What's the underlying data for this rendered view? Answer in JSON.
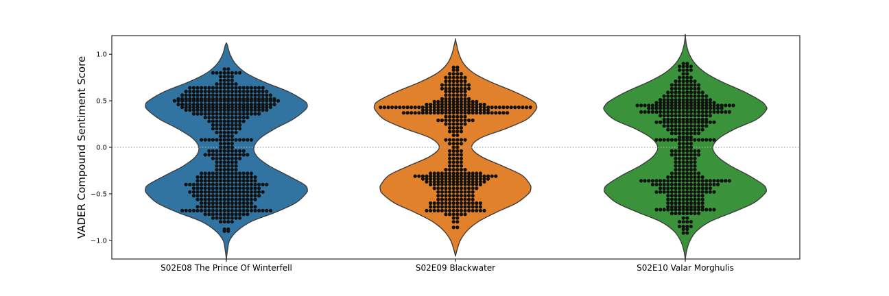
{
  "chart_data": {
    "type": "violin",
    "ylabel": "VADER Compound Sentiment Score",
    "xlabel": "",
    "ylim": [
      -1.2,
      1.2
    ],
    "yticks": [
      -1.0,
      -0.5,
      0.0,
      0.5,
      1.0
    ],
    "ytick_labels": [
      "−1.0",
      "−0.5",
      "0.0",
      "0.5",
      "1.0"
    ],
    "reference_line": {
      "y": 0.0,
      "style": "dotted",
      "color": "#aaaaaa"
    },
    "grid": false,
    "legend": "none",
    "overlay": "swarm",
    "point_color": "#111111",
    "categories": [
      "S02E08 The Prince Of Winterfell",
      "S02E09 Blackwater",
      "S02E10 Valar Morghulis"
    ],
    "colors": [
      "#3274a1",
      "#e1812c",
      "#3a923a"
    ],
    "series": [
      {
        "name": "S02E08 The Prince Of Winterfell",
        "extent": [
          -1.2,
          1.12
        ],
        "density": [
          [
            -1.2,
            0.0
          ],
          [
            -1.1,
            0.015
          ],
          [
            -1.0,
            0.04
          ],
          [
            -0.9,
            0.13
          ],
          [
            -0.8,
            0.3
          ],
          [
            -0.7,
            0.6
          ],
          [
            -0.6,
            0.85
          ],
          [
            -0.5,
            0.98
          ],
          [
            -0.45,
            1.0
          ],
          [
            -0.4,
            0.96
          ],
          [
            -0.3,
            0.75
          ],
          [
            -0.2,
            0.53
          ],
          [
            -0.1,
            0.38
          ],
          [
            0.0,
            0.34
          ],
          [
            0.1,
            0.42
          ],
          [
            0.2,
            0.6
          ],
          [
            0.3,
            0.82
          ],
          [
            0.4,
            0.97
          ],
          [
            0.45,
            1.0
          ],
          [
            0.5,
            0.96
          ],
          [
            0.6,
            0.76
          ],
          [
            0.7,
            0.47
          ],
          [
            0.8,
            0.24
          ],
          [
            0.9,
            0.11
          ],
          [
            1.0,
            0.045
          ],
          [
            1.1,
            0.012
          ],
          [
            1.12,
            0.0
          ]
        ],
        "points": [
          {
            "y": 0.84,
            "n": 2
          },
          {
            "y": 0.8,
            "n": 8
          },
          {
            "y": 0.76,
            "n": 4
          },
          {
            "y": 0.72,
            "n": 4
          },
          {
            "y": 0.68,
            "n": 6
          },
          {
            "y": 0.64,
            "n": 20
          },
          {
            "y": 0.6,
            "n": 22
          },
          {
            "y": 0.56,
            "n": 24
          },
          {
            "y": 0.52,
            "n": 26
          },
          {
            "y": 0.5,
            "n": 28
          },
          {
            "y": 0.46,
            "n": 26
          },
          {
            "y": 0.43,
            "n": 24
          },
          {
            "y": 0.4,
            "n": 22
          },
          {
            "y": 0.36,
            "n": 18
          },
          {
            "y": 0.32,
            "n": 12
          },
          {
            "y": 0.28,
            "n": 10
          },
          {
            "y": 0.24,
            "n": 8
          },
          {
            "y": 0.2,
            "n": 8
          },
          {
            "y": 0.16,
            "n": 6
          },
          {
            "y": 0.12,
            "n": 4
          },
          {
            "y": 0.08,
            "n": 14
          },
          {
            "y": 0.04,
            "n": 4
          },
          {
            "y": 0.0,
            "n": 4
          },
          {
            "y": -0.04,
            "n": 10
          },
          {
            "y": -0.08,
            "n": 12
          },
          {
            "y": -0.12,
            "n": 8
          },
          {
            "y": -0.16,
            "n": 6
          },
          {
            "y": -0.2,
            "n": 6
          },
          {
            "y": -0.24,
            "n": 6
          },
          {
            "y": -0.28,
            "n": 14
          },
          {
            "y": -0.32,
            "n": 16
          },
          {
            "y": -0.36,
            "n": 16
          },
          {
            "y": -0.4,
            "n": 22
          },
          {
            "y": -0.44,
            "n": 18
          },
          {
            "y": -0.48,
            "n": 20
          },
          {
            "y": -0.52,
            "n": 18
          },
          {
            "y": -0.56,
            "n": 16
          },
          {
            "y": -0.6,
            "n": 14
          },
          {
            "y": -0.64,
            "n": 16
          },
          {
            "y": -0.68,
            "n": 24
          },
          {
            "y": -0.72,
            "n": 12
          },
          {
            "y": -0.76,
            "n": 8
          },
          {
            "y": -0.8,
            "n": 4
          },
          {
            "y": -0.88,
            "n": 2
          },
          {
            "y": -0.9,
            "n": 2
          }
        ]
      },
      {
        "name": "S02E09 Blackwater",
        "extent": [
          -1.17,
          1.16
        ],
        "density": [
          [
            -1.17,
            0.0
          ],
          [
            -1.1,
            0.02
          ],
          [
            -1.0,
            0.06
          ],
          [
            -0.9,
            0.14
          ],
          [
            -0.8,
            0.28
          ],
          [
            -0.7,
            0.5
          ],
          [
            -0.6,
            0.75
          ],
          [
            -0.5,
            0.9
          ],
          [
            -0.45,
            0.93
          ],
          [
            -0.4,
            0.92
          ],
          [
            -0.3,
            0.82
          ],
          [
            -0.2,
            0.58
          ],
          [
            -0.1,
            0.32
          ],
          [
            0.0,
            0.2
          ],
          [
            0.1,
            0.31
          ],
          [
            0.2,
            0.62
          ],
          [
            0.3,
            0.88
          ],
          [
            0.4,
            0.99
          ],
          [
            0.45,
            1.0
          ],
          [
            0.5,
            0.95
          ],
          [
            0.6,
            0.72
          ],
          [
            0.7,
            0.44
          ],
          [
            0.8,
            0.22
          ],
          [
            0.9,
            0.1
          ],
          [
            1.0,
            0.045
          ],
          [
            1.1,
            0.015
          ],
          [
            1.16,
            0.0
          ]
        ],
        "points": [
          {
            "y": 0.86,
            "n": 2
          },
          {
            "y": 0.83,
            "n": 2
          },
          {
            "y": 0.79,
            "n": 4
          },
          {
            "y": 0.75,
            "n": 6
          },
          {
            "y": 0.71,
            "n": 6
          },
          {
            "y": 0.67,
            "n": 8
          },
          {
            "y": 0.63,
            "n": 8
          },
          {
            "y": 0.6,
            "n": 6
          },
          {
            "y": 0.56,
            "n": 6
          },
          {
            "y": 0.52,
            "n": 8
          },
          {
            "y": 0.49,
            "n": 12
          },
          {
            "y": 0.46,
            "n": 16
          },
          {
            "y": 0.43,
            "n": 40
          },
          {
            "y": 0.4,
            "n": 18
          },
          {
            "y": 0.37,
            "n": 28
          },
          {
            "y": 0.33,
            "n": 6
          },
          {
            "y": 0.29,
            "n": 10
          },
          {
            "y": 0.25,
            "n": 6
          },
          {
            "y": 0.21,
            "n": 4
          },
          {
            "y": 0.17,
            "n": 4
          },
          {
            "y": 0.13,
            "n": 2
          },
          {
            "y": 0.08,
            "n": 6
          },
          {
            "y": 0.04,
            "n": 4
          },
          {
            "y": 0.0,
            "n": 2
          },
          {
            "y": -0.04,
            "n": 4
          },
          {
            "y": -0.08,
            "n": 4
          },
          {
            "y": -0.12,
            "n": 4
          },
          {
            "y": -0.16,
            "n": 4
          },
          {
            "y": -0.2,
            "n": 4
          },
          {
            "y": -0.24,
            "n": 6
          },
          {
            "y": -0.28,
            "n": 14
          },
          {
            "y": -0.31,
            "n": 22
          },
          {
            "y": -0.34,
            "n": 18
          },
          {
            "y": -0.37,
            "n": 16
          },
          {
            "y": -0.4,
            "n": 14
          },
          {
            "y": -0.44,
            "n": 12
          },
          {
            "y": -0.48,
            "n": 10
          },
          {
            "y": -0.52,
            "n": 10
          },
          {
            "y": -0.56,
            "n": 10
          },
          {
            "y": -0.6,
            "n": 14
          },
          {
            "y": -0.64,
            "n": 14
          },
          {
            "y": -0.68,
            "n": 16
          },
          {
            "y": -0.72,
            "n": 6
          },
          {
            "y": -0.76,
            "n": 2
          },
          {
            "y": -0.8,
            "n": 2
          },
          {
            "y": -0.86,
            "n": 2
          }
        ]
      },
      {
        "name": "S02E10 Valar Morghulis",
        "extent": [
          -1.2,
          1.2
        ],
        "density": [
          [
            -1.2,
            0.0
          ],
          [
            -1.1,
            0.02
          ],
          [
            -1.0,
            0.06
          ],
          [
            -0.9,
            0.14
          ],
          [
            -0.8,
            0.3
          ],
          [
            -0.7,
            0.58
          ],
          [
            -0.6,
            0.84
          ],
          [
            -0.5,
            0.98
          ],
          [
            -0.45,
            1.0
          ],
          [
            -0.4,
            0.96
          ],
          [
            -0.3,
            0.78
          ],
          [
            -0.2,
            0.56
          ],
          [
            -0.1,
            0.4
          ],
          [
            0.0,
            0.34
          ],
          [
            0.1,
            0.42
          ],
          [
            0.2,
            0.62
          ],
          [
            0.3,
            0.88
          ],
          [
            0.4,
            1.0
          ],
          [
            0.45,
            0.99
          ],
          [
            0.5,
            0.93
          ],
          [
            0.6,
            0.72
          ],
          [
            0.7,
            0.46
          ],
          [
            0.8,
            0.25
          ],
          [
            0.9,
            0.12
          ],
          [
            1.0,
            0.05
          ],
          [
            1.1,
            0.015
          ],
          [
            1.2,
            0.0
          ]
        ],
        "points": [
          {
            "y": 0.9,
            "n": 2
          },
          {
            "y": 0.87,
            "n": 4
          },
          {
            "y": 0.83,
            "n": 4
          },
          {
            "y": 0.79,
            "n": 2
          },
          {
            "y": 0.75,
            "n": 4
          },
          {
            "y": 0.71,
            "n": 6
          },
          {
            "y": 0.67,
            "n": 8
          },
          {
            "y": 0.63,
            "n": 8
          },
          {
            "y": 0.59,
            "n": 10
          },
          {
            "y": 0.55,
            "n": 12
          },
          {
            "y": 0.51,
            "n": 14
          },
          {
            "y": 0.48,
            "n": 16
          },
          {
            "y": 0.45,
            "n": 26
          },
          {
            "y": 0.42,
            "n": 20
          },
          {
            "y": 0.38,
            "n": 24
          },
          {
            "y": 0.34,
            "n": 14
          },
          {
            "y": 0.3,
            "n": 12
          },
          {
            "y": 0.27,
            "n": 16
          },
          {
            "y": 0.23,
            "n": 12
          },
          {
            "y": 0.19,
            "n": 10
          },
          {
            "y": 0.15,
            "n": 8
          },
          {
            "y": 0.11,
            "n": 4
          },
          {
            "y": 0.08,
            "n": 16
          },
          {
            "y": 0.04,
            "n": 4
          },
          {
            "y": 0.0,
            "n": 4
          },
          {
            "y": -0.04,
            "n": 8
          },
          {
            "y": -0.08,
            "n": 8
          },
          {
            "y": -0.12,
            "n": 6
          },
          {
            "y": -0.16,
            "n": 6
          },
          {
            "y": -0.2,
            "n": 6
          },
          {
            "y": -0.24,
            "n": 6
          },
          {
            "y": -0.28,
            "n": 8
          },
          {
            "y": -0.32,
            "n": 10
          },
          {
            "y": -0.36,
            "n": 24
          },
          {
            "y": -0.4,
            "n": 18
          },
          {
            "y": -0.44,
            "n": 14
          },
          {
            "y": -0.48,
            "n": 16
          },
          {
            "y": -0.52,
            "n": 10
          },
          {
            "y": -0.56,
            "n": 10
          },
          {
            "y": -0.6,
            "n": 10
          },
          {
            "y": -0.64,
            "n": 10
          },
          {
            "y": -0.67,
            "n": 16
          },
          {
            "y": -0.71,
            "n": 8
          },
          {
            "y": -0.76,
            "n": 2
          },
          {
            "y": -0.8,
            "n": 4
          },
          {
            "y": -0.85,
            "n": 4
          },
          {
            "y": -0.88,
            "n": 2
          },
          {
            "y": -0.92,
            "n": 2
          }
        ]
      }
    ]
  }
}
